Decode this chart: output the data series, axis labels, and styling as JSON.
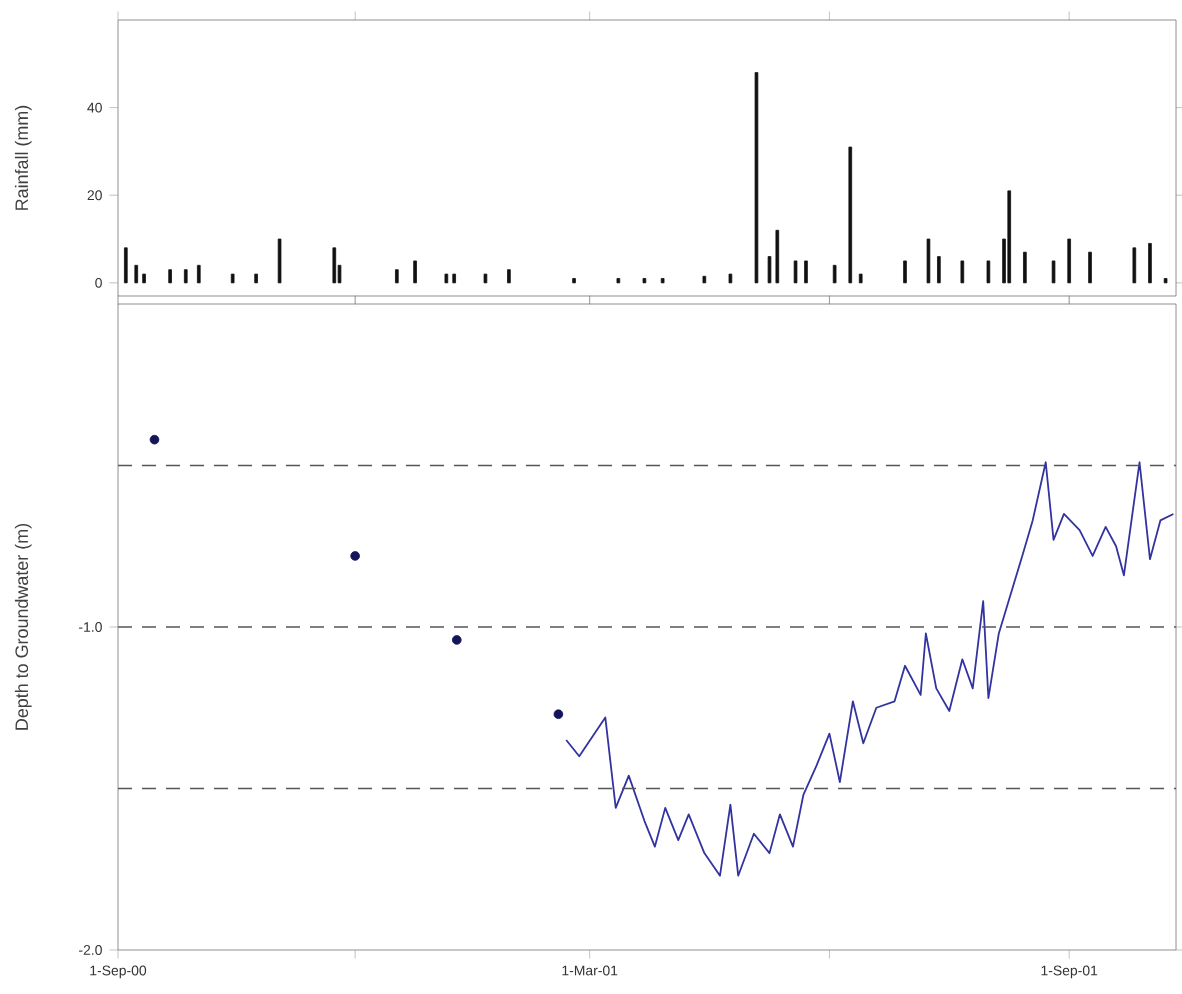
{
  "chart_data": [
    {
      "type": "bar",
      "ylabel": "Rainfall (mm)",
      "color": "#111111",
      "x": [
        "2000-09-04",
        "2000-09-08",
        "2000-09-11",
        "2000-09-21",
        "2000-09-27",
        "2000-10-02",
        "2000-10-15",
        "2000-10-24",
        "2000-11-02",
        "2000-11-23",
        "2000-11-25",
        "2000-12-17",
        "2000-12-24",
        "2001-01-05",
        "2001-01-08",
        "2001-01-20",
        "2001-01-29",
        "2001-02-23",
        "2001-03-12",
        "2001-03-22",
        "2001-03-29",
        "2001-04-14",
        "2001-04-24",
        "2001-05-04",
        "2001-05-09",
        "2001-05-12",
        "2001-05-19",
        "2001-05-23",
        "2001-06-03",
        "2001-06-09",
        "2001-06-13",
        "2001-06-30",
        "2001-07-09",
        "2001-07-13",
        "2001-07-22",
        "2001-08-01",
        "2001-08-07",
        "2001-08-09",
        "2001-08-15",
        "2001-08-26",
        "2001-09-01",
        "2001-09-09",
        "2001-09-26",
        "2001-10-02",
        "2001-10-08"
      ],
      "values": [
        8,
        4,
        2,
        3,
        3,
        4,
        2,
        2,
        10,
        8,
        4,
        3,
        5,
        2,
        2,
        2,
        3,
        1,
        1,
        1,
        1,
        1.5,
        2,
        48,
        6,
        12,
        5,
        5,
        4,
        31,
        2,
        5,
        10,
        6,
        5,
        5,
        10,
        21,
        7,
        5,
        10,
        7,
        8,
        9,
        1
      ],
      "xlim": [
        "2000-09-01",
        "2001-10-12"
      ],
      "xticks": [
        {
          "value": "2000-09-01",
          "label": null
        },
        {
          "value": "2000-12-01",
          "label": null
        },
        {
          "value": "2001-03-01",
          "label": null
        },
        {
          "value": "2001-06-01",
          "label": null
        },
        {
          "value": "2001-09-01",
          "label": null
        }
      ],
      "ylim": [
        -3,
        60
      ],
      "yticks": [
        0,
        20,
        40
      ],
      "tick_labels": "y"
    },
    {
      "type": "line",
      "ylabel": "Depth to Groundwater (m)",
      "series": [
        {
          "type": "scatter",
          "color": "#14145a",
          "marker": "circle",
          "x": [
            "2000-09-15",
            "2000-12-01",
            "2001-01-09",
            "2001-02-17"
          ],
          "values": [
            -0.42,
            -0.78,
            -1.04,
            -1.27
          ]
        },
        {
          "type": "line",
          "color": "#3333a0",
          "marker": "none",
          "line_style": "solid",
          "x": [
            "2001-02-20",
            "2001-02-25",
            "2001-03-07",
            "2001-03-11",
            "2001-03-16",
            "2001-03-22",
            "2001-03-26",
            "2001-03-30",
            "2001-04-04",
            "2001-04-08",
            "2001-04-14",
            "2001-04-20",
            "2001-04-24",
            "2001-04-27",
            "2001-05-03",
            "2001-05-09",
            "2001-05-13",
            "2001-05-18",
            "2001-05-22",
            "2001-05-27",
            "2001-06-01",
            "2001-06-05",
            "2001-06-10",
            "2001-06-14",
            "2001-06-19",
            "2001-06-26",
            "2001-06-30",
            "2001-07-06",
            "2001-07-08",
            "2001-07-12",
            "2001-07-17",
            "2001-07-22",
            "2001-07-26",
            "2001-07-30",
            "2001-08-01",
            "2001-08-05",
            "2001-08-11",
            "2001-08-14",
            "2001-08-18",
            "2001-08-23",
            "2001-08-26",
            "2001-08-30",
            "2001-09-05",
            "2001-09-10",
            "2001-09-15",
            "2001-09-19",
            "2001-09-22",
            "2001-09-28",
            "2001-10-02",
            "2001-10-06",
            "2001-10-11"
          ],
          "values": [
            -1.35,
            -1.4,
            -1.28,
            -1.56,
            -1.46,
            -1.6,
            -1.68,
            -1.56,
            -1.66,
            -1.58,
            -1.7,
            -1.77,
            -1.55,
            -1.77,
            -1.64,
            -1.7,
            -1.58,
            -1.68,
            -1.52,
            -1.43,
            -1.33,
            -1.48,
            -1.23,
            -1.36,
            -1.25,
            -1.23,
            -1.12,
            -1.21,
            -1.02,
            -1.19,
            -1.26,
            -1.1,
            -1.19,
            -0.92,
            -1.22,
            -1.02,
            -0.86,
            -0.78,
            -0.67,
            -0.49,
            -0.73,
            -0.65,
            -0.7,
            -0.78,
            -0.69,
            -0.75,
            -0.84,
            -0.49,
            -0.79,
            -0.67,
            -0.65
          ]
        }
      ],
      "xlim": [
        "2000-09-01",
        "2001-10-12"
      ],
      "xticks": [
        {
          "value": "2000-09-01",
          "label": "1-Sep-00"
        },
        {
          "value": "2000-12-01",
          "label": null
        },
        {
          "value": "2001-03-01",
          "label": "1-Mar-01"
        },
        {
          "value": "2001-06-01",
          "label": null
        },
        {
          "value": "2001-09-01",
          "label": "1-Sep-01"
        }
      ],
      "ylim": [
        -2,
        0
      ],
      "yticks": [
        {
          "value": -2,
          "label": "-2.0"
        },
        {
          "value": -1,
          "label": "-1.0"
        }
      ],
      "ref_lines": [
        {
          "axis": "y",
          "value": -0.5,
          "color": "#555555",
          "line_style": "dashed"
        },
        {
          "axis": "y",
          "value": -1.0,
          "color": "#555555",
          "line_style": "dashed"
        },
        {
          "axis": "y",
          "value": -1.5,
          "color": "#555555",
          "line_style": "dashed"
        }
      ]
    }
  ]
}
